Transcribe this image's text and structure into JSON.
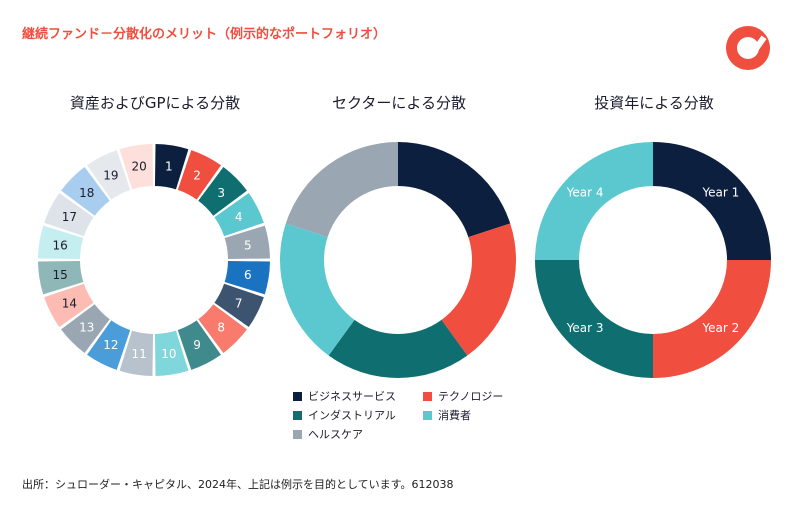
{
  "title": "継続ファンド－分散化のメリット（例示的なポートフォリオ）",
  "footnote": "出所：シュローダー・キャピタル、2024年、上記は例示を目的としています。612038",
  "colors": {
    "accent": "#f04e3e",
    "business_services": "#0d1f3f",
    "technology": "#f04e3e",
    "industrials": "#0f6e6f",
    "consumer": "#5bc8cf",
    "healthcare": "#9aa7b3"
  },
  "legend": [
    {
      "label": "ビジネスサービス",
      "color": "#0d1f3f"
    },
    {
      "label": "テクノロジー",
      "color": "#f04e3e"
    },
    {
      "label": "インダストリアル",
      "color": "#0f6e6f"
    },
    {
      "label": "消費者",
      "color": "#5bc8cf"
    },
    {
      "label": "ヘルスケア",
      "color": "#9aa7b3"
    }
  ],
  "chart_data": [
    {
      "type": "pie",
      "title": "資産およびGPによる分散",
      "categories": [
        "1",
        "2",
        "3",
        "4",
        "5",
        "6",
        "7",
        "8",
        "9",
        "10",
        "11",
        "12",
        "13",
        "14",
        "15",
        "16",
        "17",
        "18",
        "19",
        "20"
      ],
      "values": [
        5,
        5,
        5,
        5,
        5,
        5,
        5,
        5,
        5,
        5,
        5,
        5,
        5,
        5,
        5,
        5,
        5,
        5,
        5,
        5
      ],
      "colors": [
        "#0d1f3f",
        "#f04e3e",
        "#0f6e6f",
        "#5bc8cf",
        "#9aa7b3",
        "#1a73c0",
        "#3c5470",
        "#f97b6e",
        "#3f8a8c",
        "#7fd6db",
        "#b7c2cc",
        "#4a9dd9",
        "#9aa7b3",
        "#fcbcb4",
        "#8fb7b8",
        "#c5eef0",
        "#dde3e8",
        "#a9cdee",
        "#e5e9ed",
        "#fde0dc"
      ],
      "label_colors": [
        "#ffffff",
        "#ffffff",
        "#ffffff",
        "#ffffff",
        "#ffffff",
        "#ffffff",
        "#ffffff",
        "#ffffff",
        "#ffffff",
        "#ffffff",
        "#ffffff",
        "#ffffff",
        "#ffffff",
        "#1c1c2e",
        "#1c1c2e",
        "#1c1c2e",
        "#1c1c2e",
        "#1c1c2e",
        "#1c1c2e",
        "#1c1c2e"
      ]
    },
    {
      "type": "pie",
      "title": "セクターによる分散",
      "categories": [
        "ビジネスサービス",
        "テクノロジー",
        "インダストリアル",
        "消費者",
        "ヘルスケア"
      ],
      "values": [
        20,
        20,
        20,
        20,
        20
      ],
      "colors": [
        "#0d1f3f",
        "#f04e3e",
        "#0f6e6f",
        "#5bc8cf",
        "#9aa7b3"
      ]
    },
    {
      "type": "pie",
      "title": "投資年による分散",
      "categories": [
        "Year 1",
        "Year 2",
        "Year 3",
        "Year 4"
      ],
      "values": [
        25,
        25,
        25,
        25
      ],
      "colors": [
        "#0d1f3f",
        "#f04e3e",
        "#0f6e6f",
        "#5bc8cf"
      ],
      "label_colors": [
        "#ffffff",
        "#ffffff",
        "#ffffff",
        "#ffffff"
      ]
    }
  ]
}
